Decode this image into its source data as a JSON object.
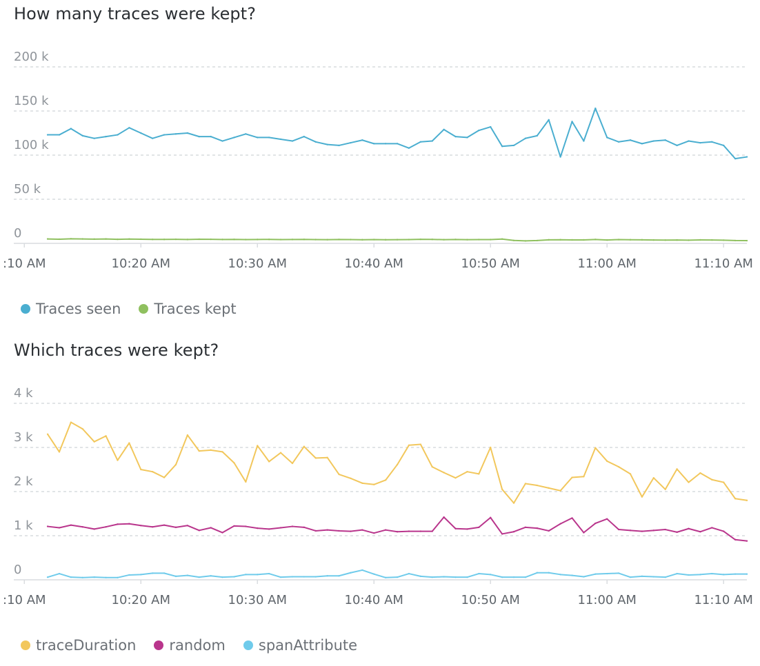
{
  "chart_data": [
    {
      "type": "line",
      "title": "How many traces were kept?",
      "xlabel": "",
      "ylabel": "",
      "ylim": [
        0,
        200000
      ],
      "y_ticks": [
        {
          "value": 200000,
          "label": "200 k"
        },
        {
          "value": 150000,
          "label": "150 k"
        },
        {
          "value": 100000,
          "label": "100 k"
        },
        {
          "value": 50000,
          "label": "50 k"
        },
        {
          "value": 0,
          "label": "0"
        }
      ],
      "xlim": [
        "10:08",
        "11:12"
      ],
      "x_ticks": [
        {
          "value": "10:10",
          "label": ":10 AM"
        },
        {
          "value": "10:20",
          "label": "10:20 AM"
        },
        {
          "value": "10:30",
          "label": "10:30 AM"
        },
        {
          "value": "10:40",
          "label": "10:40 AM"
        },
        {
          "value": "10:50",
          "label": "10:50 AM"
        },
        {
          "value": "11:00",
          "label": "11:00 AM"
        },
        {
          "value": "11:10",
          "label": "11:10 AM"
        }
      ],
      "x": [
        "10:12",
        "10:13",
        "10:14",
        "10:15",
        "10:16",
        "10:17",
        "10:18",
        "10:19",
        "10:20",
        "10:21",
        "10:22",
        "10:23",
        "10:24",
        "10:25",
        "10:26",
        "10:27",
        "10:28",
        "10:29",
        "10:30",
        "10:31",
        "10:32",
        "10:33",
        "10:34",
        "10:35",
        "10:36",
        "10:37",
        "10:38",
        "10:39",
        "10:40",
        "10:41",
        "10:42",
        "10:43",
        "10:44",
        "10:45",
        "10:46",
        "10:47",
        "10:48",
        "10:49",
        "10:50",
        "10:51",
        "10:52",
        "10:53",
        "10:54",
        "10:55",
        "10:56",
        "10:57",
        "10:58",
        "10:59",
        "11:00",
        "11:01",
        "11:02",
        "11:03",
        "11:04",
        "11:05",
        "11:06",
        "11:07",
        "11:08",
        "11:09",
        "11:10",
        "11:11",
        "11:12"
      ],
      "grid": true,
      "legend_position": "bottom-left",
      "series": [
        {
          "name": "Traces seen",
          "color": "#4aaed0",
          "values": [
            123000,
            123000,
            130000,
            122000,
            119000,
            121000,
            123000,
            131000,
            125000,
            119000,
            123000,
            124000,
            125000,
            121000,
            121000,
            116000,
            120000,
            124000,
            120000,
            120000,
            118000,
            116000,
            121000,
            115000,
            112000,
            111000,
            114000,
            117000,
            113000,
            113000,
            113000,
            108000,
            115000,
            116000,
            129000,
            121000,
            120000,
            128000,
            132000,
            110000,
            111000,
            119000,
            122000,
            140000,
            98000,
            138000,
            116000,
            153000,
            120000,
            115000,
            117000,
            113000,
            116000,
            117000,
            111000,
            116000,
            114000,
            115000,
            111000,
            96000,
            98000
          ]
        },
        {
          "name": "Traces kept",
          "color": "#8fc05f",
          "values": [
            5000,
            4700,
            5200,
            5000,
            4800,
            5000,
            4600,
            4900,
            4700,
            4500,
            4500,
            4600,
            4400,
            4700,
            4600,
            4400,
            4500,
            4300,
            4400,
            4500,
            4300,
            4400,
            4500,
            4300,
            4200,
            4400,
            4300,
            4100,
            4300,
            4100,
            4200,
            4300,
            4600,
            4500,
            4200,
            4400,
            4200,
            4300,
            4300,
            4900,
            3300,
            2800,
            3200,
            4000,
            4100,
            3900,
            3900,
            4400,
            3800,
            4300,
            4100,
            4000,
            3800,
            3700,
            3800,
            3600,
            3900,
            3800,
            3600,
            3200,
            3100
          ]
        }
      ]
    },
    {
      "type": "line",
      "title": "Which traces were kept?",
      "xlabel": "",
      "ylabel": "",
      "ylim": [
        0,
        4000
      ],
      "y_ticks": [
        {
          "value": 4000,
          "label": "4 k"
        },
        {
          "value": 3000,
          "label": "3 k"
        },
        {
          "value": 2000,
          "label": "2 k"
        },
        {
          "value": 1000,
          "label": "1 k"
        },
        {
          "value": 0,
          "label": "0"
        }
      ],
      "xlim": [
        "10:08",
        "11:12"
      ],
      "x_ticks": [
        {
          "value": "10:10",
          "label": ":10 AM"
        },
        {
          "value": "10:20",
          "label": "10:20 AM"
        },
        {
          "value": "10:30",
          "label": "10:30 AM"
        },
        {
          "value": "10:40",
          "label": "10:40 AM"
        },
        {
          "value": "10:50",
          "label": "10:50 AM"
        },
        {
          "value": "11:00",
          "label": "11:00 AM"
        },
        {
          "value": "11:10",
          "label": "11:10 AM"
        }
      ],
      "x": [
        "10:12",
        "10:13",
        "10:14",
        "10:15",
        "10:16",
        "10:17",
        "10:18",
        "10:19",
        "10:20",
        "10:21",
        "10:22",
        "10:23",
        "10:24",
        "10:25",
        "10:26",
        "10:27",
        "10:28",
        "10:29",
        "10:30",
        "10:31",
        "10:32",
        "10:33",
        "10:34",
        "10:35",
        "10:36",
        "10:37",
        "10:38",
        "10:39",
        "10:40",
        "10:41",
        "10:42",
        "10:43",
        "10:44",
        "10:45",
        "10:46",
        "10:47",
        "10:48",
        "10:49",
        "10:50",
        "10:51",
        "10:52",
        "10:53",
        "10:54",
        "10:55",
        "10:56",
        "10:57",
        "10:58",
        "10:59",
        "11:00",
        "11:01",
        "11:02",
        "11:03",
        "11:04",
        "11:05",
        "11:06",
        "11:07",
        "11:08",
        "11:09",
        "11:10",
        "11:11",
        "11:12"
      ],
      "grid": true,
      "legend_position": "bottom-left",
      "series": [
        {
          "name": "traceDuration",
          "color": "#f2c75c",
          "values": [
            3300,
            2900,
            3570,
            3420,
            3130,
            3260,
            2710,
            3100,
            2500,
            2450,
            2320,
            2610,
            3280,
            2920,
            2940,
            2900,
            2650,
            2220,
            3040,
            2680,
            2880,
            2640,
            3020,
            2760,
            2770,
            2390,
            2300,
            2190,
            2160,
            2260,
            2610,
            3050,
            3070,
            2560,
            2430,
            2310,
            2450,
            2400,
            3000,
            2050,
            1740,
            2180,
            2140,
            2080,
            2020,
            2320,
            2340,
            2990,
            2690,
            2560,
            2400,
            1880,
            2310,
            2050,
            2510,
            2210,
            2420,
            2270,
            2210,
            1840,
            1800
          ]
        },
        {
          "name": "random",
          "color": "#b9358c",
          "values": [
            1210,
            1180,
            1240,
            1200,
            1150,
            1200,
            1260,
            1270,
            1230,
            1200,
            1240,
            1190,
            1230,
            1120,
            1180,
            1070,
            1220,
            1210,
            1170,
            1150,
            1180,
            1210,
            1190,
            1110,
            1130,
            1110,
            1100,
            1130,
            1060,
            1130,
            1090,
            1100,
            1100,
            1100,
            1420,
            1160,
            1150,
            1190,
            1410,
            1040,
            1090,
            1190,
            1170,
            1110,
            1270,
            1400,
            1070,
            1280,
            1380,
            1140,
            1120,
            1100,
            1120,
            1140,
            1080,
            1160,
            1090,
            1180,
            1100,
            910,
            880
          ]
        },
        {
          "name": "spanAttribute",
          "color": "#6fcbeb",
          "values": [
            60,
            140,
            60,
            50,
            60,
            50,
            50,
            110,
            120,
            150,
            150,
            80,
            100,
            60,
            90,
            60,
            70,
            120,
            120,
            140,
            60,
            70,
            70,
            70,
            90,
            90,
            160,
            220,
            130,
            50,
            60,
            140,
            80,
            60,
            70,
            60,
            60,
            140,
            120,
            60,
            60,
            60,
            160,
            160,
            120,
            100,
            70,
            130,
            140,
            150,
            60,
            80,
            70,
            60,
            140,
            110,
            120,
            140,
            120,
            130,
            130
          ]
        }
      ]
    }
  ]
}
